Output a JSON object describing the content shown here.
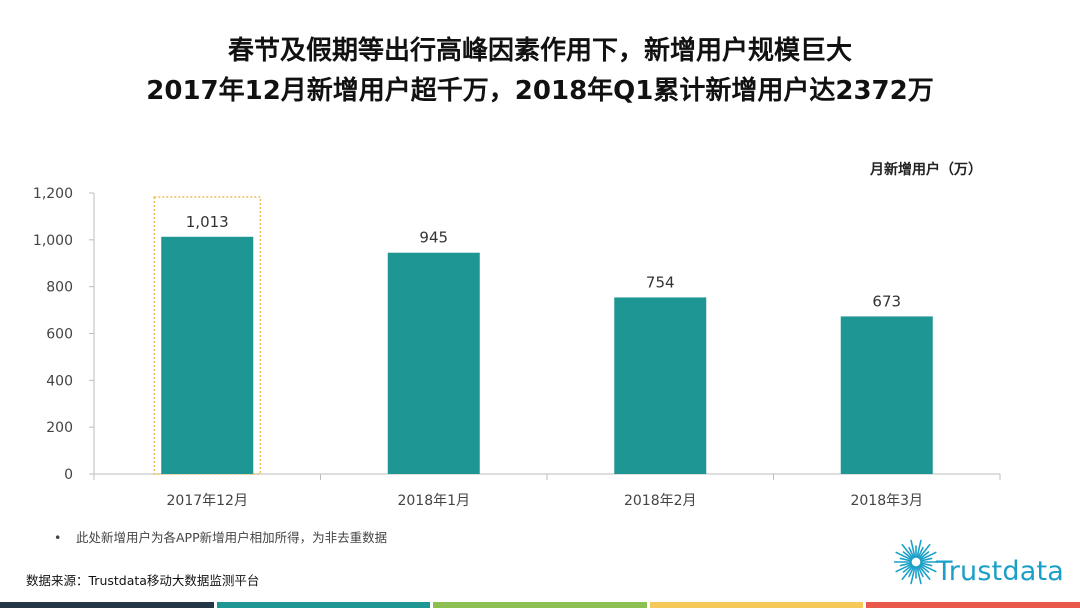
{
  "header": {
    "title_line1": "春节及假期等出行高峰因素作用下，新增用户规模巨大",
    "title_line2": "2017年12月新增用户超千万，2018年Q1累计新增用户达2372万"
  },
  "chart_data": {
    "type": "bar",
    "unit_label": "月新增用户（万）",
    "categories": [
      "2017年12月",
      "2018年1月",
      "2018年2月",
      "2018年3月"
    ],
    "values": [
      1013,
      945,
      754,
      673
    ],
    "value_labels": [
      "1,013",
      "945",
      "754",
      "673"
    ],
    "ylim": [
      0,
      1200
    ],
    "yticks": [
      0,
      200,
      400,
      600,
      800,
      1000,
      1200
    ],
    "ytick_labels": [
      "0",
      "200",
      "400",
      "600",
      "800",
      "1,000",
      "1,200"
    ],
    "highlight_index": 0,
    "bar_color": "#1e9693",
    "highlight_color": "#e8b23a",
    "grid": false
  },
  "footnote": {
    "bullet": "•",
    "text": "此处新增用户为各APP新增用户相加所得，为非去重数据"
  },
  "source": "数据来源：Trustdata移动大数据监测平台",
  "logo": {
    "text": "Trustdata",
    "icon": "sunburst-logo-icon",
    "color": "#1aa0c8"
  },
  "footer_colors": [
    "#243746",
    "#1e9693",
    "#8cc152",
    "#f5c85a",
    "#e8594b"
  ]
}
